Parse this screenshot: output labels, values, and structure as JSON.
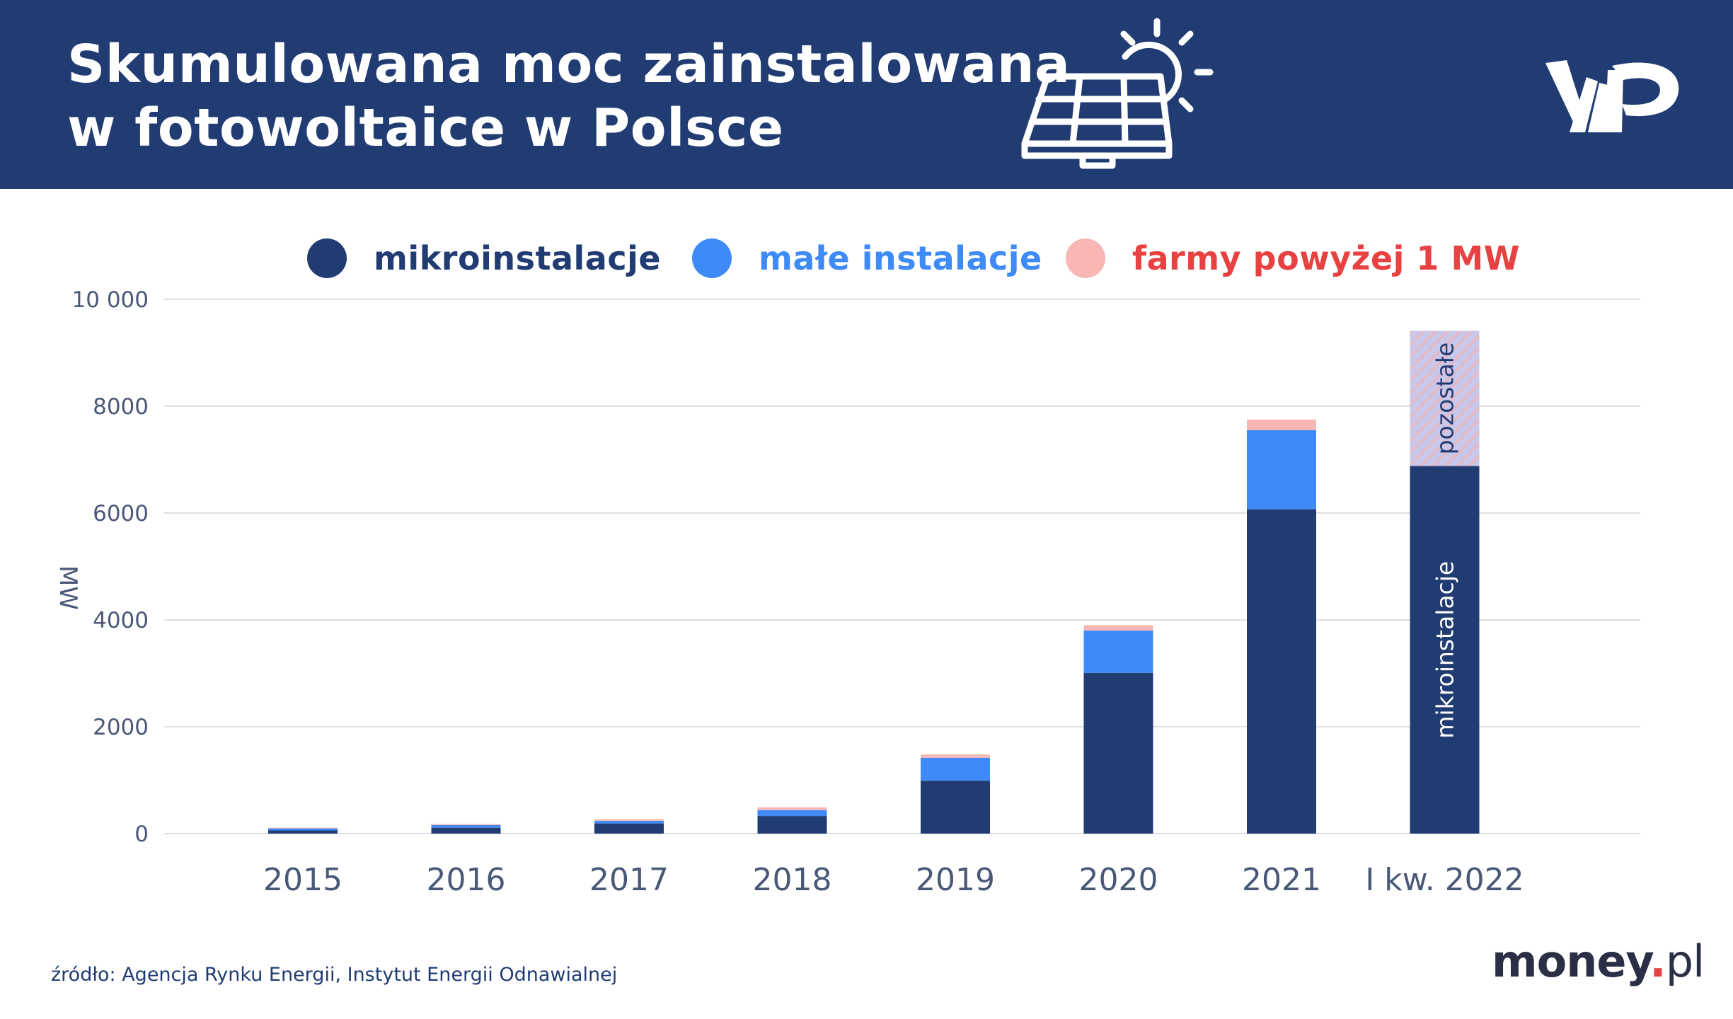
{
  "header": {
    "title_line1": "Skumulowana moc zainstalowana",
    "title_line2": "w fotowoltaice w Polsce",
    "background_color": "#213c72"
  },
  "legend": [
    {
      "label": "mikroinstalacje",
      "color": "#213c72",
      "text_color": "#213c72"
    },
    {
      "label": "małe instalacje",
      "color": "#3e8af7",
      "text_color": "#3e8af7"
    },
    {
      "label": "farmy powyżej 1 MW",
      "color": "#f8b7b4",
      "text_color": "#e84141"
    }
  ],
  "chart_data": {
    "type": "bar",
    "stacked": true,
    "ylabel": "MW",
    "ylim": [
      0,
      10000
    ],
    "yticks": [
      0,
      2000,
      4000,
      6000,
      8000,
      10000
    ],
    "ytick_labels": [
      "0",
      "2000",
      "4000",
      "6000",
      "8000",
      "10 000"
    ],
    "grid": true,
    "categories": [
      "2015",
      "2016",
      "2017",
      "2018",
      "2019",
      "2020",
      "2021",
      "I kw. 2022"
    ],
    "series": [
      {
        "name": "mikroinstalacje",
        "color": "#213c72",
        "values": [
          60,
          110,
          190,
          330,
          990,
          3010,
          6070,
          6880
        ]
      },
      {
        "name": "małe instalacje",
        "color": "#3e8af7",
        "values": [
          40,
          50,
          50,
          110,
          430,
          790,
          1480,
          null
        ]
      },
      {
        "name": "farmy powyżej 1 MW",
        "color": "#f8b7b4",
        "values": [
          10,
          20,
          30,
          50,
          60,
          100,
          200,
          null
        ]
      },
      {
        "name": "pozostałe",
        "color": "#c4c9e6",
        "values": [
          null,
          null,
          null,
          null,
          null,
          null,
          null,
          2530
        ]
      }
    ],
    "bar_annotations": [
      {
        "category": "I kw. 2022",
        "series": "mikroinstalacje",
        "text": "mikroinstalacje"
      },
      {
        "category": "I kw. 2022",
        "series": "pozostałe",
        "text": "pozostałe"
      }
    ]
  },
  "footer": {
    "source": "źródło: Agencja Rynku Energii, Instytut Energii Odnawialnej",
    "brand_main": "money",
    "brand_dot": ".",
    "brand_suffix": "pl"
  },
  "colors": {
    "axis_text": "#4a5878",
    "grid": "#dde0e6",
    "brand_red": "#e84141"
  }
}
